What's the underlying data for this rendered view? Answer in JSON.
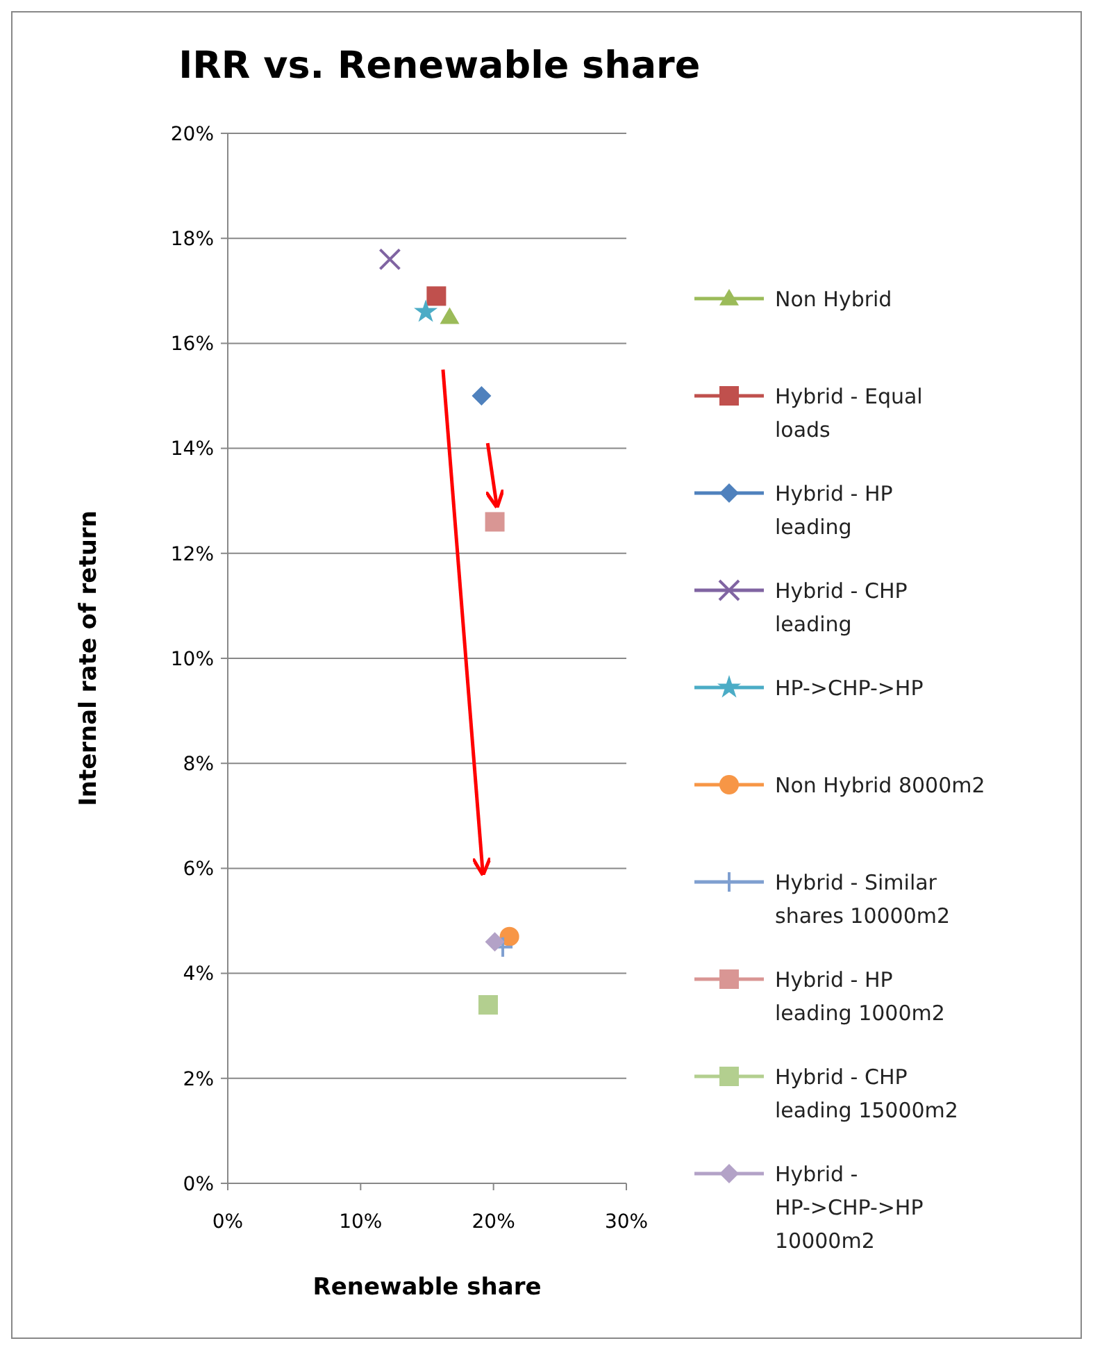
{
  "chart_data": {
    "type": "scatter",
    "title": "IRR vs. Renewable share",
    "xlabel": "Renewable share",
    "ylabel": "Internal rate of return",
    "xlim": [
      0,
      30
    ],
    "xticks": [
      {
        "value": 0,
        "label": "0%"
      },
      {
        "value": 10,
        "label": "10%"
      },
      {
        "value": 20,
        "label": "20%"
      },
      {
        "value": 30,
        "label": "30%"
      }
    ],
    "ylim": [
      0,
      20
    ],
    "yticks": [
      {
        "value": 0,
        "label": "0%"
      },
      {
        "value": 2,
        "label": "2%"
      },
      {
        "value": 4,
        "label": "4%"
      },
      {
        "value": 6,
        "label": "6%"
      },
      {
        "value": 8,
        "label": "8%"
      },
      {
        "value": 10,
        "label": "10%"
      },
      {
        "value": 12,
        "label": "12%"
      },
      {
        "value": 14,
        "label": "14%"
      },
      {
        "value": 16,
        "label": "16%"
      },
      {
        "value": 18,
        "label": "18%"
      },
      {
        "value": 20,
        "label": "20%"
      }
    ],
    "grid": "y",
    "legend": "right",
    "series": [
      {
        "name": "Non Hybrid",
        "color": "#9bbb59",
        "marker": "triangle",
        "x": [
          16.7
        ],
        "values": [
          16.5
        ]
      },
      {
        "name": "Hybrid - Equal loads",
        "color": "#c0504d",
        "marker": "square",
        "x": [
          15.7
        ],
        "values": [
          16.9
        ]
      },
      {
        "name": "Hybrid - HP leading",
        "color": "#4f81bd",
        "marker": "diamond",
        "x": [
          19.1
        ],
        "values": [
          15.0
        ]
      },
      {
        "name": "Hybrid - CHP leading",
        "color": "#8064a2",
        "marker": "cross",
        "x": [
          12.2
        ],
        "values": [
          17.6
        ]
      },
      {
        "name": "HP->CHP->HP",
        "color": "#4bacc6",
        "marker": "star",
        "x": [
          14.9
        ],
        "values": [
          16.6
        ]
      },
      {
        "name": "Non Hybrid 8000m2",
        "color": "#f79646",
        "marker": "circle",
        "x": [
          21.2
        ],
        "values": [
          4.7
        ]
      },
      {
        "name": "Hybrid - Similar shares 10000m2",
        "color": "#7f9fd0",
        "marker": "plus",
        "x": [
          20.7
        ],
        "values": [
          4.5
        ]
      },
      {
        "name": "Hybrid - HP leading 1000m2",
        "color": "#d99694",
        "marker": "square",
        "x": [
          20.1
        ],
        "values": [
          12.6
        ]
      },
      {
        "name": "Hybrid - CHP leading 15000m2",
        "color": "#b3cf8f",
        "marker": "square",
        "x": [
          19.6
        ],
        "values": [
          3.4
        ]
      },
      {
        "name": "Hybrid - HP->CHP->HP 10000m2",
        "color": "#b3a2c7",
        "marker": "diamond",
        "x": [
          20.1
        ],
        "values": [
          4.6
        ]
      }
    ]
  }
}
